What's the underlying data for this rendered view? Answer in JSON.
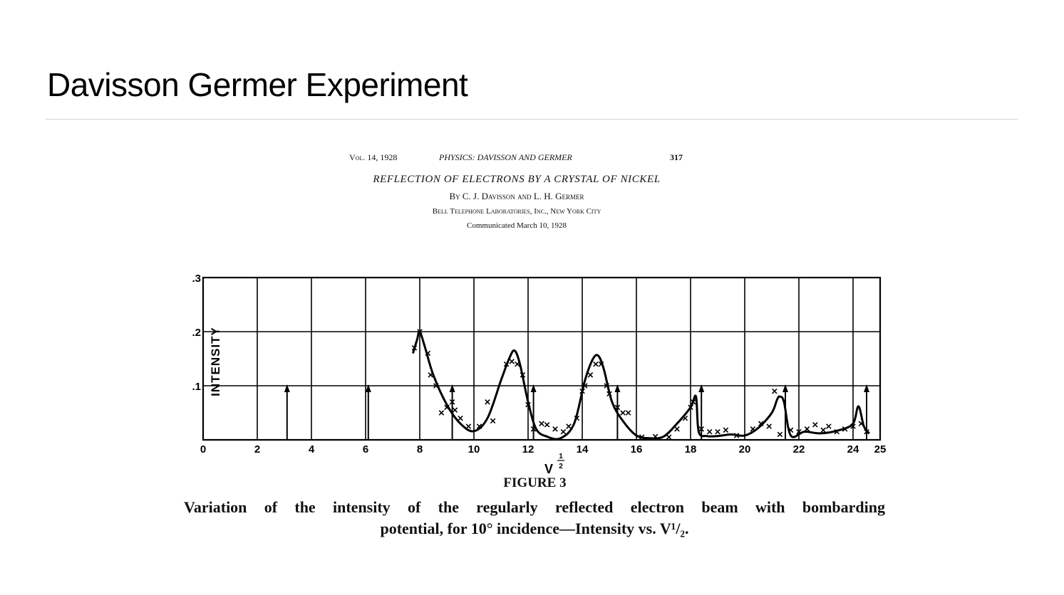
{
  "slide": {
    "title": "Davisson Germer Experiment"
  },
  "paper": {
    "volume": "Vol. 14, 1928",
    "journal": "PHYSICS: DAVISSON AND GERMER",
    "page": "317",
    "title": "REFLECTION OF ELECTRONS BY A CRYSTAL OF NICKEL",
    "authors": "By C. J. Davisson and L. H. Germer",
    "affiliation": "Bell Telephone Laboratories, Inc., New York City",
    "communicated": "Communicated March 10, 1928"
  },
  "figure": {
    "label": "FIGURE 3",
    "caption_line1": "Variation of the intensity of the regularly reflected electron beam with bombarding",
    "caption_line2": "potential, for 10° incidence—Intensity vs. V¹/₂."
  },
  "chart_data": {
    "type": "line",
    "ylabel": "INTENSITY",
    "xlabel": "V^1/2",
    "xlim": [
      0,
      25
    ],
    "ylim": [
      0,
      0.3
    ],
    "grid": true,
    "x_ticks": [
      0,
      2,
      4,
      6,
      8,
      10,
      12,
      14,
      16,
      18,
      20,
      22,
      24,
      25
    ],
    "x_tick_labels": [
      "0",
      "2",
      "4",
      "6",
      "8",
      "10",
      "12",
      "14",
      "16",
      "18",
      "20",
      "22",
      "24",
      "25"
    ],
    "y_ticks": [
      0.1,
      0.2,
      0.3
    ],
    "y_tick_labels": [
      ".1",
      ".2",
      ".3"
    ],
    "series": [
      {
        "style": "smooth-curve",
        "x": [
          7.75,
          7.9,
          8.0,
          8.2,
          8.5,
          9.0,
          9.5,
          10.0,
          10.5,
          11.0,
          11.3,
          11.5,
          11.7,
          12.0,
          12.3,
          12.7,
          13.2,
          13.7,
          14.1,
          14.4,
          14.6,
          14.8,
          15.1,
          15.5,
          16.0,
          16.5,
          17.0,
          17.5,
          18.0,
          18.2,
          18.3,
          18.6,
          19.0,
          19.5,
          20.0,
          20.5,
          21.0,
          21.2,
          21.3,
          21.45,
          21.7,
          22.2,
          22.8,
          23.5,
          24.0,
          24.2,
          24.4,
          24.6
        ],
        "y": [
          0.16,
          0.185,
          0.2,
          0.17,
          0.12,
          0.065,
          0.03,
          0.016,
          0.04,
          0.11,
          0.15,
          0.165,
          0.14,
          0.07,
          0.02,
          0.006,
          0.003,
          0.03,
          0.11,
          0.15,
          0.155,
          0.13,
          0.07,
          0.035,
          0.008,
          0.003,
          0.006,
          0.03,
          0.06,
          0.08,
          0.015,
          0.007,
          0.007,
          0.01,
          0.008,
          0.022,
          0.05,
          0.075,
          0.08,
          0.07,
          0.008,
          0.015,
          0.012,
          0.018,
          0.03,
          0.062,
          0.025,
          0.012
        ]
      },
      {
        "style": "cross-markers",
        "x": [
          7.8,
          8.0,
          8.3,
          8.4,
          8.6,
          8.8,
          9.0,
          9.2,
          9.3,
          9.5,
          9.8,
          10.2,
          10.5,
          10.7,
          11.2,
          11.4,
          11.6,
          11.8,
          12.0,
          12.2,
          12.5,
          12.7,
          13.0,
          13.3,
          13.5,
          13.8,
          14.0,
          14.1,
          14.3,
          14.5,
          14.7,
          14.9,
          15.0,
          15.3,
          15.5,
          15.7,
          16.2,
          16.7,
          17.2,
          17.5,
          17.8,
          18.0,
          18.1,
          18.4,
          18.7,
          19.0,
          19.3,
          19.7,
          20.3,
          20.6,
          20.9,
          21.1,
          21.3,
          21.7,
          22.0,
          22.3,
          22.6,
          22.9,
          23.1,
          23.4,
          23.7,
          24.0,
          24.3,
          24.5
        ],
        "y": [
          0.17,
          0.2,
          0.16,
          0.12,
          0.1,
          0.05,
          0.06,
          0.07,
          0.055,
          0.04,
          0.025,
          0.025,
          0.07,
          0.035,
          0.14,
          0.145,
          0.14,
          0.12,
          0.065,
          0.02,
          0.03,
          0.028,
          0.02,
          0.015,
          0.025,
          0.04,
          0.09,
          0.1,
          0.12,
          0.14,
          0.14,
          0.1,
          0.085,
          0.06,
          0.05,
          0.05,
          0.005,
          0.006,
          0.005,
          0.02,
          0.04,
          0.06,
          0.07,
          0.02,
          0.015,
          0.015,
          0.018,
          0.008,
          0.02,
          0.03,
          0.025,
          0.09,
          0.01,
          0.018,
          0.015,
          0.02,
          0.028,
          0.018,
          0.025,
          0.015,
          0.02,
          0.025,
          0.03,
          0.015
        ]
      }
    ],
    "arrows": [
      {
        "x": 3.1,
        "y": 0.1
      },
      {
        "x": 6.1,
        "y": 0.1
      },
      {
        "x": 9.2,
        "y": 0.1
      },
      {
        "x": 12.2,
        "y": 0.1
      },
      {
        "x": 15.3,
        "y": 0.1
      },
      {
        "x": 18.4,
        "y": 0.1
      },
      {
        "x": 21.5,
        "y": 0.1
      },
      {
        "x": 24.5,
        "y": 0.1
      }
    ]
  }
}
